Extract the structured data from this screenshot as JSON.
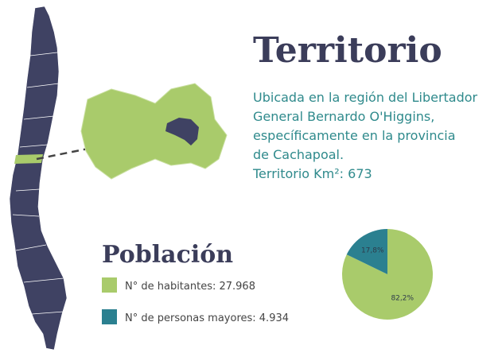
{
  "title": "Territorio",
  "description": [
    "Ubicada en la región del Libertador",
    "General Bernardo O'Higgins,",
    "específicamente en la provincia",
    "de Cachapoal.",
    "Territorio Km²: 673"
  ],
  "population_title": "Población",
  "chart_data": {
    "type": "pie",
    "categories": [
      "N° de habitantes: 27.968",
      "N° de personas mayores: 4.934"
    ],
    "values": [
      82.2,
      17.8
    ],
    "value_labels": [
      "82,2%",
      "17,8%"
    ],
    "colors": [
      "#a9cb6b",
      "#2b8090"
    ]
  }
}
